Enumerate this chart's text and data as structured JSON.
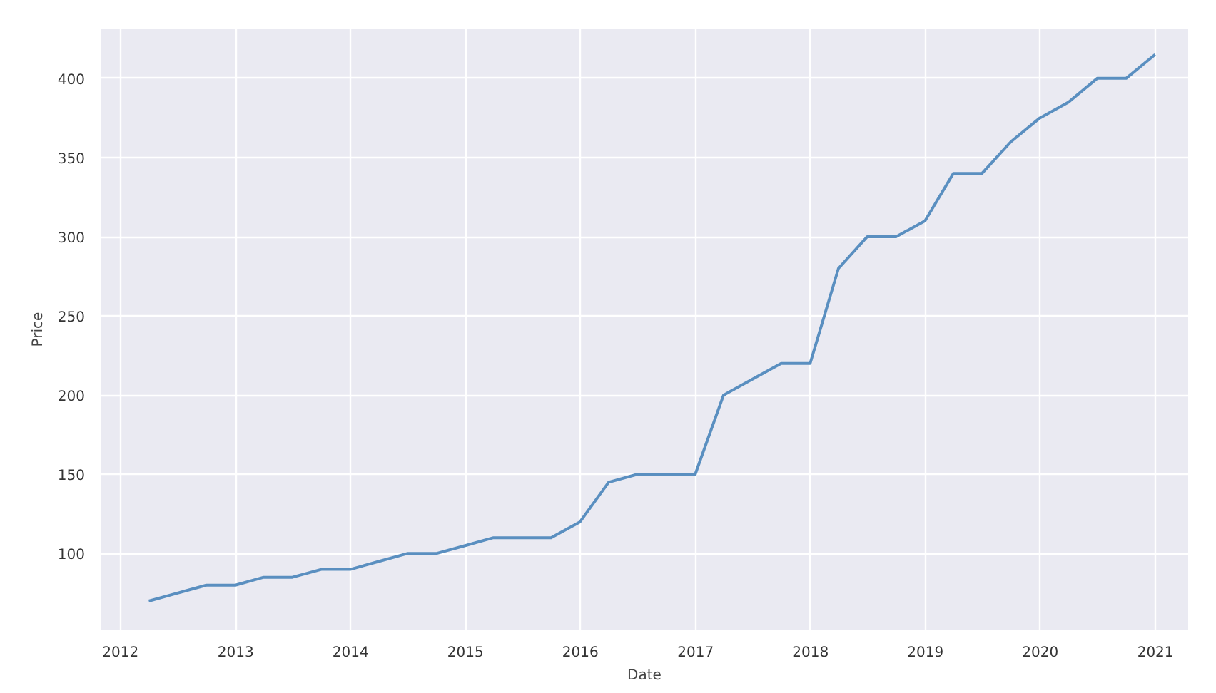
{
  "chart_data": {
    "type": "line",
    "xlabel": "Date",
    "ylabel": "Price",
    "x": [
      "2012-03-31",
      "2012-06-30",
      "2012-09-30",
      "2012-12-31",
      "2013-03-31",
      "2013-06-30",
      "2013-09-30",
      "2013-12-31",
      "2014-03-31",
      "2014-06-30",
      "2014-09-30",
      "2014-12-31",
      "2015-03-31",
      "2015-06-30",
      "2015-09-30",
      "2015-12-31",
      "2016-03-31",
      "2016-06-30",
      "2016-09-30",
      "2016-12-31",
      "2017-03-31",
      "2017-06-30",
      "2017-09-30",
      "2017-12-31",
      "2018-03-31",
      "2018-06-30",
      "2018-09-30",
      "2018-12-31",
      "2019-03-31",
      "2019-06-30",
      "2019-09-30",
      "2019-12-31",
      "2020-03-31",
      "2020-06-30",
      "2020-09-30",
      "2020-12-31"
    ],
    "series": [
      {
        "color": "#5a8fc0",
        "values": [
          70,
          75,
          80,
          80,
          85,
          85,
          90,
          90,
          95,
          100,
          100,
          105,
          110,
          110,
          110,
          120,
          145,
          150,
          150,
          150,
          200,
          210,
          220,
          220,
          280,
          300,
          300,
          310,
          340,
          340,
          360,
          375,
          385,
          400,
          400,
          415
        ]
      }
    ],
    "xlim": [
      "2011-10-30",
      "2021-04-15"
    ],
    "xticks": [
      {
        "value": "2012-01-01",
        "label": "2012"
      },
      {
        "value": "2013-01-01",
        "label": "2013"
      },
      {
        "value": "2014-01-01",
        "label": "2014"
      },
      {
        "value": "2015-01-01",
        "label": "2015"
      },
      {
        "value": "2016-01-01",
        "label": "2016"
      },
      {
        "value": "2017-01-01",
        "label": "2017"
      },
      {
        "value": "2018-01-01",
        "label": "2018"
      },
      {
        "value": "2019-01-01",
        "label": "2019"
      },
      {
        "value": "2020-01-01",
        "label": "2020"
      },
      {
        "value": "2021-01-01",
        "label": "2021"
      }
    ],
    "ylim": [
      52,
      431
    ],
    "yticks": [
      100,
      150,
      200,
      250,
      300,
      350,
      400
    ],
    "grid": true,
    "line_style": "solid"
  }
}
